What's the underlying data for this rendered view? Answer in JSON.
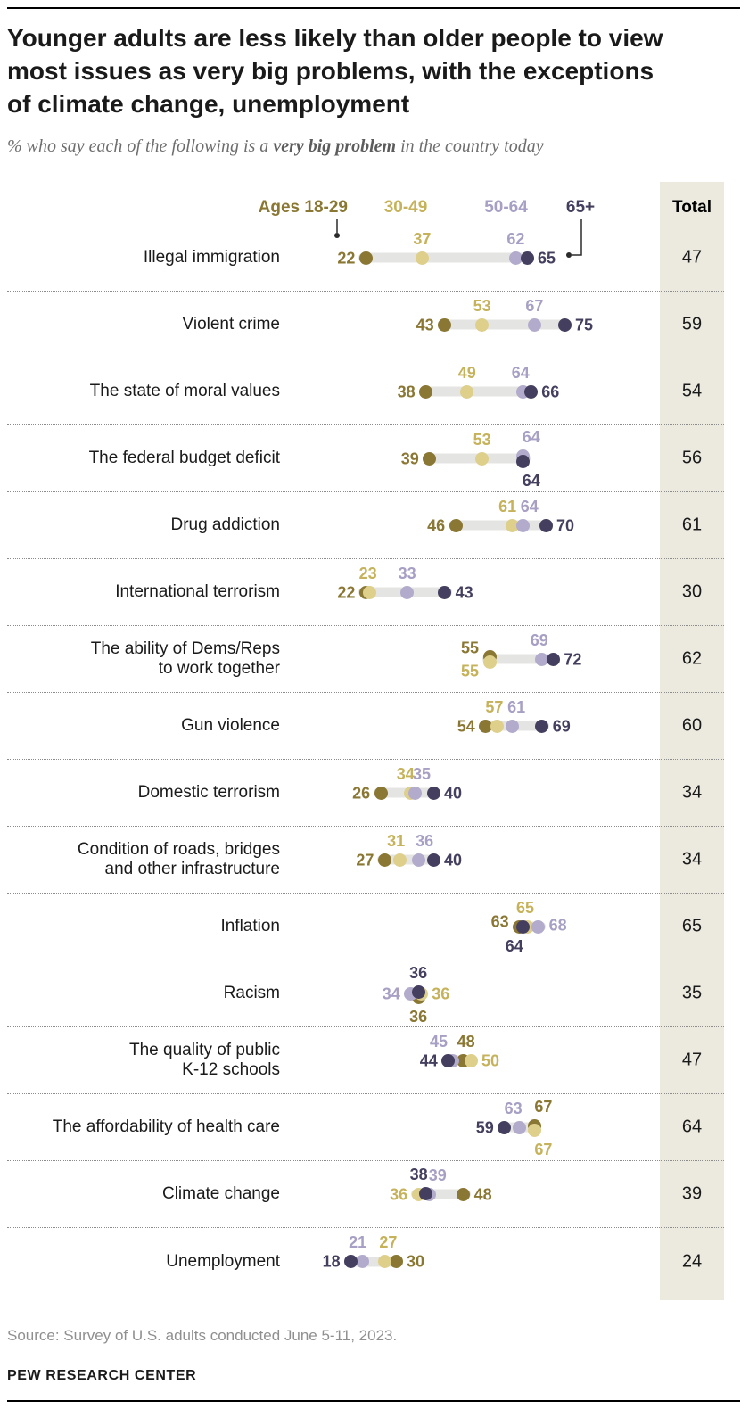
{
  "meta": {
    "title_lines": [
      "Younger adults are less likely than older people to view",
      "most issues as very big problems, with the exceptions",
      "of climate change, unemployment"
    ],
    "subtitle_prefix": "% who say each of the following is a ",
    "subtitle_bold": "very big problem",
    "subtitle_suffix": " in the country today",
    "source": "Source: Survey of U.S. adults conducted June 5-11, 2023.",
    "footer": "PEW RESEARCH CENTER"
  },
  "chart_data": {
    "type": "dot-plot",
    "title": "Younger adults are less likely than older people to view most issues as very big problems, with the exceptions of climate change, unemployment",
    "subtitle": "% who say each of the following is a very big problem in the country today",
    "axis": {
      "value_min": 0,
      "value_max": 100
    },
    "legend_position": "top",
    "total_header": "Total",
    "legend": [
      {
        "label": "Ages 18-29",
        "color": "#8A7733",
        "text": "#8A7733"
      },
      {
        "label": "30-49",
        "color": "#DECF8B",
        "text": "#C5B25A"
      },
      {
        "label": "50-64",
        "color": "#B3ABCB",
        "text": "#A79FC4"
      },
      {
        "label": "65+",
        "color": "#453F5F",
        "text": "#453F5F"
      }
    ],
    "colors": {
      "total_column_bg": "#ECEADF",
      "range_bar": "#E4E4E2"
    },
    "rows": [
      {
        "label": "Illegal immigration",
        "total": 47,
        "points": [
          {
            "group": 0,
            "value": 22,
            "lp": "left"
          },
          {
            "group": 1,
            "value": 37,
            "lp": "above"
          },
          {
            "group": 2,
            "value": 62,
            "lp": "above"
          },
          {
            "group": 3,
            "value": 65,
            "lp": "right"
          }
        ]
      },
      {
        "label": "Violent crime",
        "total": 59,
        "points": [
          {
            "group": 0,
            "value": 43,
            "lp": "left"
          },
          {
            "group": 1,
            "value": 53,
            "lp": "above"
          },
          {
            "group": 2,
            "value": 67,
            "lp": "above"
          },
          {
            "group": 3,
            "value": 75,
            "lp": "right"
          }
        ]
      },
      {
        "label": "The state of moral values",
        "total": 54,
        "points": [
          {
            "group": 0,
            "value": 38,
            "lp": "left"
          },
          {
            "group": 1,
            "value": 49,
            "lp": "above"
          },
          {
            "group": 2,
            "value": 64,
            "lp": "above",
            "ldx": -3
          },
          {
            "group": 3,
            "value": 66,
            "lp": "right"
          }
        ]
      },
      {
        "label": "The federal budget deficit",
        "total": 56,
        "points": [
          {
            "group": 0,
            "value": 39,
            "lp": "left"
          },
          {
            "group": 1,
            "value": 53,
            "lp": "above"
          },
          {
            "group": 2,
            "value": 64,
            "lp": "above",
            "ldx": 9,
            "ddy": -3
          },
          {
            "group": 3,
            "value": 64,
            "lp": "below",
            "ldx": 9,
            "ddy": 3
          }
        ]
      },
      {
        "label": "Drug addiction",
        "total": 61,
        "points": [
          {
            "group": 0,
            "value": 46,
            "lp": "left"
          },
          {
            "group": 1,
            "value": 61,
            "lp": "above",
            "ldx": -5
          },
          {
            "group": 2,
            "value": 64,
            "lp": "above",
            "ldx": 7
          },
          {
            "group": 3,
            "value": 70,
            "lp": "right"
          }
        ]
      },
      {
        "label": "International terrorism",
        "total": 30,
        "points": [
          {
            "group": 0,
            "value": 22,
            "lp": "left"
          },
          {
            "group": 1,
            "value": 23,
            "lp": "above",
            "ldx": -2
          },
          {
            "group": 2,
            "value": 33,
            "lp": "above"
          },
          {
            "group": 3,
            "value": 43,
            "lp": "right"
          }
        ]
      },
      {
        "label": "The ability of Dems/Reps\nto work together",
        "total": 62,
        "points": [
          {
            "group": 0,
            "value": 55,
            "lp": "left",
            "ldy": -10,
            "ddy": -3
          },
          {
            "group": 1,
            "value": 55,
            "lp": "left",
            "ldy": 10,
            "ddy": 3
          },
          {
            "group": 2,
            "value": 69,
            "lp": "above",
            "ldx": -3
          },
          {
            "group": 3,
            "value": 72,
            "lp": "right"
          }
        ]
      },
      {
        "label": "Gun violence",
        "total": 60,
        "points": [
          {
            "group": 0,
            "value": 54,
            "lp": "left"
          },
          {
            "group": 1,
            "value": 57,
            "lp": "above",
            "ldx": -3
          },
          {
            "group": 2,
            "value": 61,
            "lp": "above",
            "ldx": 5
          },
          {
            "group": 3,
            "value": 69,
            "lp": "right"
          }
        ]
      },
      {
        "label": "Domestic terrorism",
        "total": 34,
        "points": [
          {
            "group": 0,
            "value": 26,
            "lp": "left"
          },
          {
            "group": 1,
            "value": 34,
            "lp": "above",
            "ldx": -6
          },
          {
            "group": 2,
            "value": 35,
            "lp": "above",
            "ldx": 8
          },
          {
            "group": 3,
            "value": 40,
            "lp": "right"
          }
        ]
      },
      {
        "label": "Condition of roads, bridges\nand other infrastructure",
        "total": 34,
        "points": [
          {
            "group": 0,
            "value": 27,
            "lp": "left"
          },
          {
            "group": 1,
            "value": 31,
            "lp": "above",
            "ldx": -4
          },
          {
            "group": 2,
            "value": 36,
            "lp": "above",
            "ldx": 7
          },
          {
            "group": 3,
            "value": 40,
            "lp": "right"
          }
        ]
      },
      {
        "label": "Inflation",
        "total": 65,
        "points": [
          {
            "group": 0,
            "value": 63,
            "lp": "left",
            "ldy": -6
          },
          {
            "group": 1,
            "value": 65,
            "lp": "above",
            "ldx": -2
          },
          {
            "group": 2,
            "value": 68,
            "lp": "right",
            "ldy": -2
          },
          {
            "group": 3,
            "value": 64,
            "lp": "below",
            "ldx": -10
          }
        ]
      },
      {
        "label": "Racism",
        "total": 35,
        "points": [
          {
            "group": 0,
            "value": 36,
            "lp": "below",
            "ddy": 4
          },
          {
            "group": 1,
            "value": 36,
            "lp": "right",
            "ddx": 3
          },
          {
            "group": 2,
            "value": 34,
            "lp": "left"
          },
          {
            "group": 3,
            "value": 36,
            "lp": "above",
            "ddy": -2
          }
        ]
      },
      {
        "label": "The quality of public\nK-12 schools",
        "total": 47,
        "points": [
          {
            "group": 0,
            "value": 48,
            "lp": "above",
            "ldx": 3
          },
          {
            "group": 1,
            "value": 50,
            "lp": "right"
          },
          {
            "group": 2,
            "value": 45,
            "lp": "above",
            "ldx": -15
          },
          {
            "group": 3,
            "value": 44,
            "lp": "left"
          }
        ]
      },
      {
        "label": "The affordability of health care",
        "total": 64,
        "points": [
          {
            "group": 0,
            "value": 67,
            "lp": "above",
            "ldx": 10,
            "ddy": -2
          },
          {
            "group": 1,
            "value": 67,
            "lp": "below",
            "ldx": 10,
            "ddy": 3
          },
          {
            "group": 2,
            "value": 63,
            "lp": "above",
            "ldx": -7
          },
          {
            "group": 3,
            "value": 59,
            "lp": "left"
          }
        ]
      },
      {
        "label": "Climate change",
        "total": 39,
        "points": [
          {
            "group": 0,
            "value": 48,
            "lp": "right"
          },
          {
            "group": 1,
            "value": 36,
            "lp": "left"
          },
          {
            "group": 2,
            "value": 39,
            "lp": "above",
            "ldx": 9
          },
          {
            "group": 3,
            "value": 38,
            "lp": "above",
            "ldx": -8,
            "ddy": -1
          }
        ]
      },
      {
        "label": "Unemployment",
        "total": 24,
        "points": [
          {
            "group": 0,
            "value": 30,
            "lp": "right"
          },
          {
            "group": 1,
            "value": 27,
            "lp": "above",
            "ldx": 4
          },
          {
            "group": 2,
            "value": 21,
            "lp": "above",
            "ldx": -5
          },
          {
            "group": 3,
            "value": 18,
            "lp": "left"
          }
        ]
      }
    ]
  }
}
